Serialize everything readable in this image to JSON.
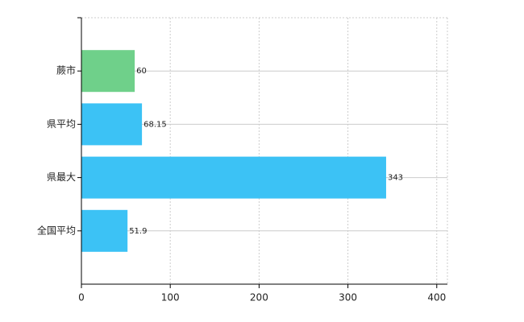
{
  "chart_data": {
    "type": "hbar",
    "categories": [
      "蕨市",
      "県平均",
      "県最大",
      "全国平均"
    ],
    "values": [
      60,
      68.15,
      343,
      51.9
    ],
    "colors": [
      "#6fd08a",
      "#3cc2f5",
      "#3cc2f5",
      "#3cc2f5"
    ],
    "xlim": [
      0,
      412
    ],
    "xticks": [
      0,
      100,
      200,
      300,
      400
    ],
    "grid": true
  }
}
